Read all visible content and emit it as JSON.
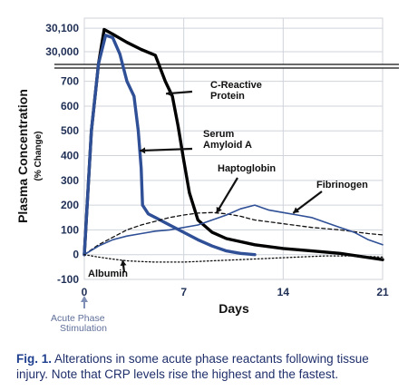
{
  "chart_data": {
    "type": "line",
    "ylabel": "Plasma Concentration",
    "ylabel_sub": "(% Change)",
    "xlabel": "Days",
    "x_ticks": [
      0,
      7,
      14,
      21
    ],
    "y_ticks_lower": [
      -100,
      0,
      100,
      200,
      300,
      400,
      500,
      600,
      700
    ],
    "y_ticks_upper": [
      "30,000",
      "30,100"
    ],
    "xlim": [
      0,
      21
    ],
    "ylim_lower": [
      -100,
      750
    ],
    "ylim_upper": [
      29950,
      30120
    ],
    "axis_break": true,
    "grid": true,
    "stimulation_label": [
      "Acute Phase",
      "Stimulation"
    ],
    "series": [
      {
        "name": "C-Reactive Protein",
        "label_lines": [
          "C-Reactive",
          "Protein"
        ],
        "color": "#000000",
        "style": "solid-thick",
        "points": [
          [
            0,
            0
          ],
          [
            0.5,
            500
          ],
          [
            1,
            29950
          ],
          [
            1.4,
            30095
          ],
          [
            2,
            30075
          ],
          [
            3,
            30040
          ],
          [
            4,
            30010
          ],
          [
            5,
            29985
          ],
          [
            5.7,
            700
          ],
          [
            6.2,
            640
          ],
          [
            6.6,
            520
          ],
          [
            7,
            380
          ],
          [
            7.4,
            250
          ],
          [
            8,
            140
          ],
          [
            9,
            90
          ],
          [
            10,
            65
          ],
          [
            12,
            40
          ],
          [
            14,
            25
          ],
          [
            16,
            15
          ],
          [
            18,
            5
          ],
          [
            21,
            -20
          ]
        ]
      },
      {
        "name": "Serum Amyloid A",
        "label_lines": [
          "Serum",
          "Amyloid A"
        ],
        "color": "#2f4f96",
        "style": "solid-thick",
        "points": [
          [
            0,
            0
          ],
          [
            0.5,
            500
          ],
          [
            1,
            29950
          ],
          [
            1.5,
            30070
          ],
          [
            2,
            30060
          ],
          [
            2.5,
            29990
          ],
          [
            3,
            700
          ],
          [
            3.5,
            640
          ],
          [
            3.8,
            500
          ],
          [
            4,
            350
          ],
          [
            4.1,
            200
          ],
          [
            4.5,
            165
          ],
          [
            5,
            150
          ],
          [
            6,
            120
          ],
          [
            7,
            90
          ],
          [
            8,
            60
          ],
          [
            9,
            35
          ],
          [
            10,
            15
          ],
          [
            11,
            5
          ],
          [
            12,
            0
          ]
        ]
      },
      {
        "name": "Haptoglobin",
        "label_lines": [
          "Haptoglobin"
        ],
        "color": "#111111",
        "style": "dashed",
        "points": [
          [
            0,
            0
          ],
          [
            1,
            40
          ],
          [
            2,
            70
          ],
          [
            3,
            100
          ],
          [
            4,
            120
          ],
          [
            6,
            150
          ],
          [
            7,
            160
          ],
          [
            8,
            168
          ],
          [
            9,
            170
          ],
          [
            10,
            165
          ],
          [
            11,
            155
          ],
          [
            12,
            140
          ],
          [
            14,
            125
          ],
          [
            16,
            110
          ],
          [
            18,
            100
          ],
          [
            20,
            85
          ],
          [
            21,
            80
          ]
        ]
      },
      {
        "name": "Fibrinogen",
        "label_lines": [
          "Fibrinogen"
        ],
        "color": "#2f4f96",
        "style": "solid",
        "points": [
          [
            0,
            0
          ],
          [
            1,
            35
          ],
          [
            2,
            60
          ],
          [
            3,
            75
          ],
          [
            4,
            85
          ],
          [
            5,
            95
          ],
          [
            6,
            100
          ],
          [
            8,
            120
          ],
          [
            9,
            140
          ],
          [
            10,
            160
          ],
          [
            11,
            185
          ],
          [
            12,
            200
          ],
          [
            13,
            180
          ],
          [
            14,
            170
          ],
          [
            15,
            160
          ],
          [
            16,
            150
          ],
          [
            17,
            130
          ],
          [
            18,
            110
          ],
          [
            19,
            90
          ],
          [
            20,
            60
          ],
          [
            21,
            40
          ]
        ]
      },
      {
        "name": "Albumin",
        "label_lines": [
          "Albumin"
        ],
        "color": "#111111",
        "style": "dotted",
        "points": [
          [
            0,
            0
          ],
          [
            1,
            -10
          ],
          [
            2,
            -18
          ],
          [
            3,
            -25
          ],
          [
            4,
            -28
          ],
          [
            5,
            -30
          ],
          [
            6,
            -30
          ],
          [
            7,
            -30
          ],
          [
            9,
            -25
          ],
          [
            11,
            -20
          ],
          [
            13,
            -15
          ],
          [
            15,
            -10
          ],
          [
            17,
            -5
          ],
          [
            19,
            -5
          ],
          [
            21,
            -10
          ]
        ]
      }
    ]
  },
  "caption": {
    "fig_label": "Fig. 1.",
    "text": " Alterations in some acute phase reactants following tissue injury. Note that CRP levels rise the highest and the fastest."
  }
}
